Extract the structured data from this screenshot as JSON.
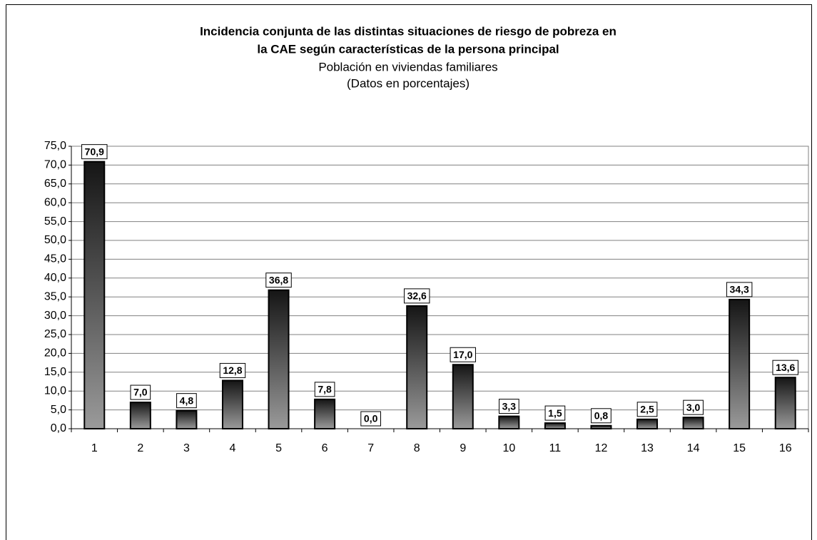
{
  "chart_data": {
    "type": "bar",
    "title": [
      "Incidencia conjunta de las distintas situaciones de riesgo de pobreza en",
      "la CAE según características de la persona principal"
    ],
    "subtitle": [
      "Población en viviendas familiares",
      "(Datos en porcentajes)"
    ],
    "categories": [
      "1",
      "2",
      "3",
      "4",
      "5",
      "6",
      "7",
      "8",
      "9",
      "10",
      "11",
      "12",
      "13",
      "14",
      "15",
      "16"
    ],
    "values": [
      70.9,
      7.0,
      4.8,
      12.8,
      36.8,
      7.8,
      0.0,
      32.6,
      17.0,
      3.3,
      1.5,
      0.8,
      2.5,
      3.0,
      34.3,
      13.6
    ],
    "value_labels": [
      "70,9",
      "7,0",
      "4,8",
      "12,8",
      "36,8",
      "7,8",
      "0,0",
      "32,6",
      "17,0",
      "3,3",
      "1,5",
      "0,8",
      "2,5",
      "3,0",
      "34,3",
      "13,6"
    ],
    "ylim": [
      0,
      75
    ],
    "yticks": [
      {
        "value": 0,
        "label": "0,0"
      },
      {
        "value": 5,
        "label": "5,0"
      },
      {
        "value": 10,
        "label": "10,0"
      },
      {
        "value": 15,
        "label": "15,0"
      },
      {
        "value": 20,
        "label": "20,0"
      },
      {
        "value": 25,
        "label": "25,0"
      },
      {
        "value": 30,
        "label": "30,0"
      },
      {
        "value": 35,
        "label": "35,0"
      },
      {
        "value": 40,
        "label": "40,0"
      },
      {
        "value": 45,
        "label": "45,0"
      },
      {
        "value": 50,
        "label": "50,0"
      },
      {
        "value": 55,
        "label": "55,0"
      },
      {
        "value": 60,
        "label": "60,0"
      },
      {
        "value": 65,
        "label": "65,0"
      },
      {
        "value": 70,
        "label": "70,0"
      },
      {
        "value": 75,
        "label": "75,0"
      }
    ],
    "grid": true
  }
}
